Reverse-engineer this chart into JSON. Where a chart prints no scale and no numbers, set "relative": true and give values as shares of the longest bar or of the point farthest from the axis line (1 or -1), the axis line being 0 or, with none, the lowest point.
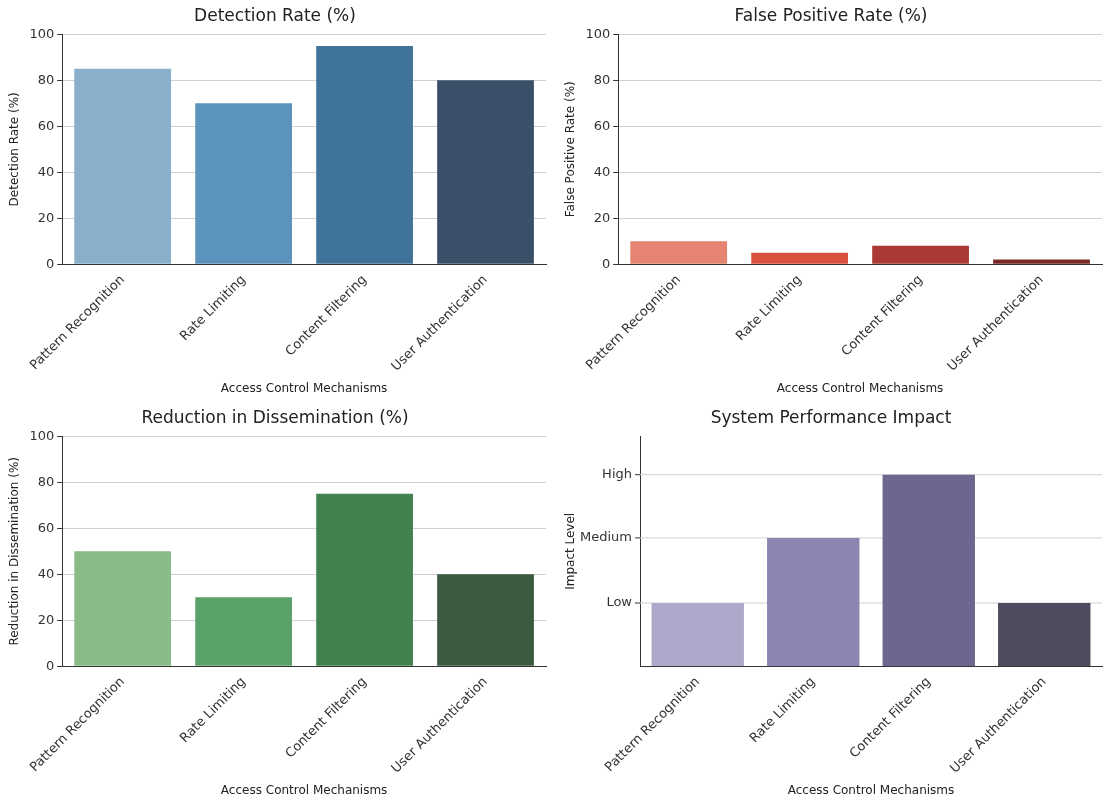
{
  "chart_data": [
    {
      "type": "bar",
      "title": "Detection Rate (%)",
      "xlabel": "Access Control Mechanisms",
      "ylabel": "Detection Rate (%)",
      "categories": [
        "Pattern Recognition",
        "Rate Limiting",
        "Content Filtering",
        "User Authentication"
      ],
      "values": [
        85,
        70,
        95,
        80
      ],
      "colors": [
        "#89afca",
        "#5b93bc",
        "#40739a",
        "#3a5068"
      ],
      "ylim": [
        0,
        100
      ],
      "yticks": [
        0,
        20,
        40,
        60,
        80,
        100
      ],
      "grid": "y"
    },
    {
      "type": "bar",
      "title": "False Positive Rate (%)",
      "xlabel": "Access Control Mechanisms",
      "ylabel": "False Positive Rate (%)",
      "categories": [
        "Pattern Recognition",
        "Rate Limiting",
        "Content Filtering",
        "User Authentication"
      ],
      "values": [
        10,
        5,
        8,
        2
      ],
      "colors": [
        "#e58471",
        "#d9503e",
        "#ac3a34",
        "#7a2a26"
      ],
      "ylim": [
        0,
        100
      ],
      "yticks": [
        0,
        20,
        40,
        60,
        80,
        100
      ],
      "grid": "y"
    },
    {
      "type": "bar",
      "title": "Reduction in Dissemination (%)",
      "xlabel": "Access Control Mechanisms",
      "ylabel": "Reduction in Dissemination (%)",
      "categories": [
        "Pattern Recognition",
        "Rate Limiting",
        "Content Filtering",
        "User Authentication"
      ],
      "values": [
        50,
        30,
        75,
        40
      ],
      "colors": [
        "#88bb88",
        "#5aa26a",
        "#41824f",
        "#3b5a40"
      ],
      "ylim": [
        0,
        100
      ],
      "yticks": [
        0,
        20,
        40,
        60,
        80,
        100
      ],
      "grid": "y"
    },
    {
      "type": "bar",
      "title": "System Performance Impact",
      "xlabel": "Access Control Mechanisms",
      "ylabel": "Impact Level",
      "categories": [
        "Pattern Recognition",
        "Rate Limiting",
        "Content Filtering",
        "User Authentication"
      ],
      "relative": true,
      "values": [
        0.33,
        0.67,
        1,
        0.33
      ],
      "colors": [
        "#aea9cb",
        "#8d85b1",
        "#6f6690",
        "#4f4a5d"
      ],
      "ref_lines": [
        {
          "axis": "y",
          "value": 0.33,
          "label": "Low",
          "color": "#d0d0d0"
        },
        {
          "axis": "y",
          "value": 0.67,
          "label": "Medium",
          "color": "#d0d0d0"
        },
        {
          "axis": "y",
          "value": 1,
          "label": "High",
          "color": "#d0d0d0"
        }
      ]
    }
  ]
}
